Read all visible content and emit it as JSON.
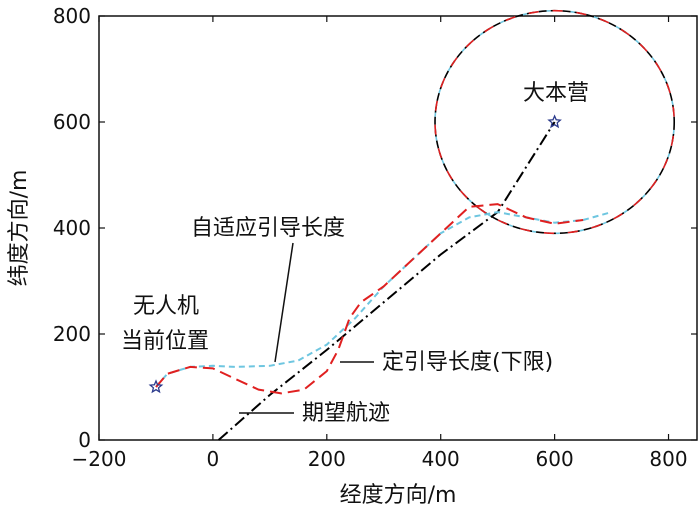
{
  "chart_data": {
    "type": "line",
    "title": "",
    "xlabel": "经度方向/m",
    "ylabel": "纬度方向/m",
    "xlim": [
      -200,
      850
    ],
    "ylim": [
      0,
      800
    ],
    "xticks": [
      -200,
      0,
      200,
      400,
      600,
      800
    ],
    "yticks": [
      0,
      200,
      400,
      600,
      800
    ],
    "grid": false,
    "annotations": {
      "base": "大本营",
      "uav_line1": "无人机",
      "uav_line2": "当前位置",
      "adaptive": "自适应引导长度",
      "fixed": "定引导长度(下限)",
      "desired": "期望航迹"
    },
    "points": {
      "uav": [
        -100,
        100
      ],
      "base": [
        600,
        600
      ]
    },
    "circle": {
      "center": [
        600,
        600
      ],
      "radius": 210
    },
    "series": [
      {
        "key": "desired",
        "color": "#000000",
        "x": [
          10,
          100,
          200,
          300,
          400,
          500,
          600
        ],
        "y": [
          0,
          85,
          170,
          260,
          350,
          430,
          600
        ]
      },
      {
        "key": "adaptive",
        "color": "#6ec6e0",
        "x": [
          -100,
          -80,
          -40,
          0,
          40,
          100,
          150,
          200,
          250,
          300,
          350,
          400,
          450,
          500,
          550,
          600,
          650,
          700
        ],
        "y": [
          100,
          125,
          138,
          140,
          138,
          140,
          150,
          180,
          230,
          290,
          340,
          390,
          420,
          430,
          420,
          410,
          415,
          430
        ]
      },
      {
        "key": "fixed",
        "color": "#e02020",
        "x": [
          -100,
          -80,
          -40,
          0,
          40,
          80,
          120,
          160,
          200,
          220,
          240,
          260,
          300,
          350,
          400,
          450,
          500,
          550,
          600,
          650
        ],
        "y": [
          100,
          125,
          138,
          135,
          115,
          95,
          88,
          95,
          130,
          170,
          230,
          260,
          290,
          340,
          390,
          440,
          445,
          420,
          408,
          415
        ]
      }
    ]
  }
}
